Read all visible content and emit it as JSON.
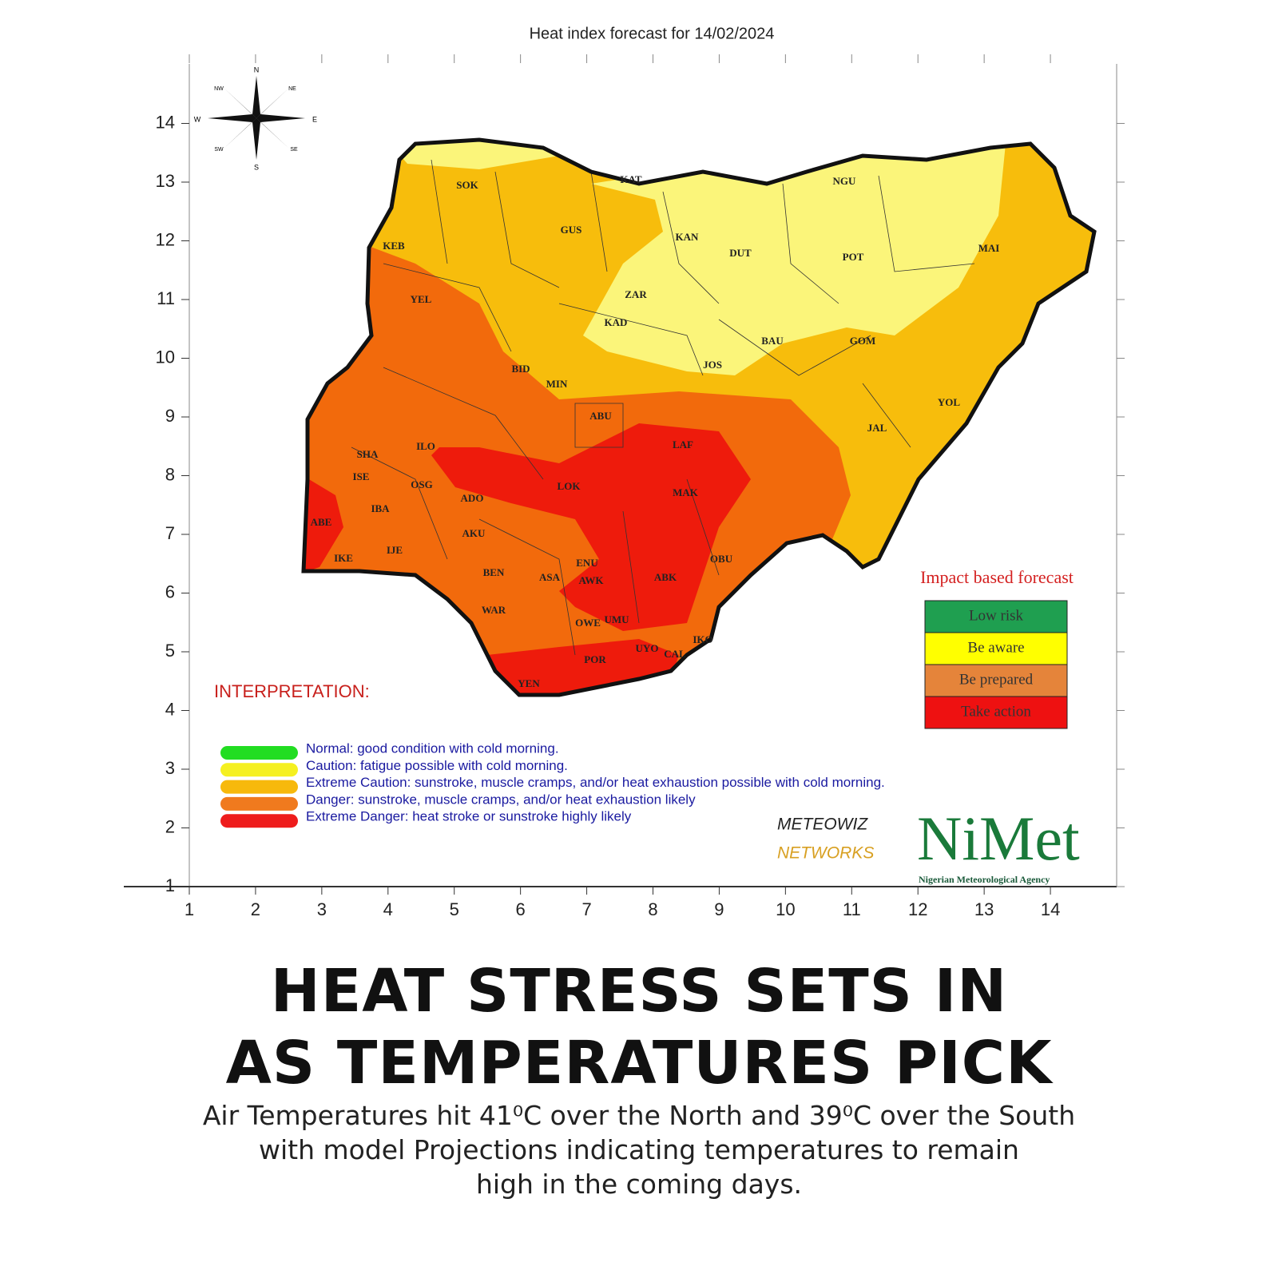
{
  "map": {
    "title": "Heat index forecast for 14/02/2024",
    "xlim": [
      1,
      15
    ],
    "ylim": [
      1,
      15
    ],
    "xticks": [
      1,
      2,
      3,
      4,
      5,
      6,
      7,
      8,
      9,
      10,
      11,
      12,
      13,
      14
    ],
    "yticks": [
      1,
      2,
      3,
      4,
      5,
      6,
      7,
      8,
      9,
      10,
      11,
      12,
      13,
      14
    ],
    "compass": {
      "n": "N",
      "ne": "NE",
      "e": "E",
      "se": "SE",
      "s": "S",
      "sw": "SW",
      "w": "W",
      "nw": "NW"
    },
    "places": [
      "SOK",
      "KAT",
      "NGU",
      "GUS",
      "KAN",
      "DUT",
      "POT",
      "MAI",
      "KEB",
      "YEL",
      "ZAR",
      "KAD",
      "BAU",
      "GOM",
      "BID",
      "JOS",
      "MIN",
      "YOL",
      "ABU",
      "JAL",
      "SHA",
      "ILO",
      "LAF",
      "ISE",
      "OSG",
      "LOK",
      "MAK",
      "ADO",
      "IBA",
      "ABE",
      "AKU",
      "IJE",
      "IKE",
      "ENU",
      "OBU",
      "BEN",
      "ASA",
      "AWK",
      "ABK",
      "WAR",
      "OWE",
      "UMU",
      "IKO",
      "UYO",
      "CAL",
      "POR",
      "YEN"
    ],
    "impact_legend": {
      "title": "Impact based forecast",
      "items": [
        {
          "label": "Low risk",
          "color": "#1f9f50"
        },
        {
          "label": "Be aware",
          "color": "#ffff00"
        },
        {
          "label": "Be prepared",
          "color": "#e5843a"
        },
        {
          "label": "Take action",
          "color": "#ee1111"
        }
      ]
    },
    "interpretation": {
      "title": "INTERPRETATION:",
      "items": [
        {
          "label": "Normal: good condition with cold morning.",
          "color": "#22dd22"
        },
        {
          "label": "Caution: fatigue possible  with cold morning.",
          "color": "#f5f020"
        },
        {
          "label": "Extreme Caution: sunstroke, muscle cramps, and/or heat exhaustion possible  with cold morning.",
          "color": "#f7b90c"
        },
        {
          "label": "Danger: sunstroke, muscle cramps, and/or heat exhaustion likely",
          "color": "#f07a1e"
        },
        {
          "label": "Extreme Danger: heat stroke or sunstroke highly likely",
          "color": "#ee1c1c"
        }
      ]
    },
    "logos": {
      "meteowiz": "METEOWIZ",
      "networks": "NETWORKS",
      "nimet": "NiMet",
      "agency": "Nigerian Meteorological Agency"
    }
  },
  "article": {
    "headline": [
      "HEAT STRESS SETS IN",
      "AS TEMPERATURES PICK"
    ],
    "subtitle": [
      "Air Temperatures hit 41⁰C over the North and 39⁰C over the South",
      "with model Projections indicating temperatures to remain",
      "high in the coming days."
    ]
  }
}
